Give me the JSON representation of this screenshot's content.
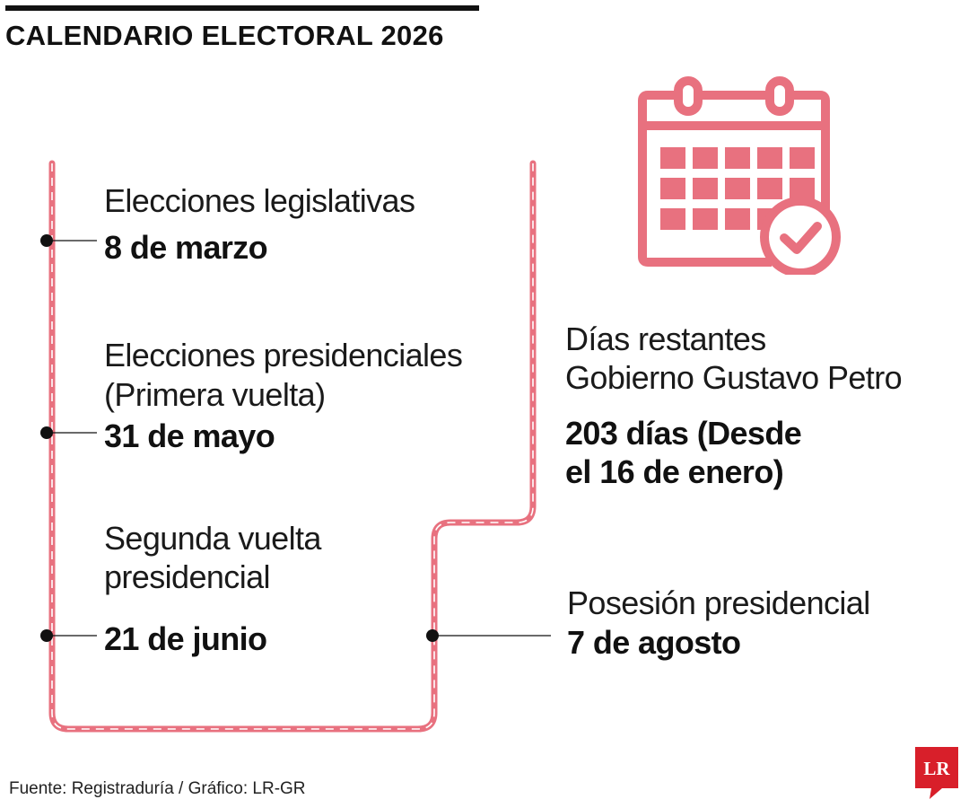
{
  "header": {
    "title": "CALENDARIO ELECTORAL 2026"
  },
  "timeline": {
    "events": [
      {
        "label_lines": [
          "Elecciones legislativas"
        ],
        "date": "8 de marzo"
      },
      {
        "label_lines": [
          "Elecciones presidenciales",
          "(Primera vuelta)"
        ],
        "date": "31 de mayo"
      },
      {
        "label_lines": [
          "Segunda vuelta",
          "presidencial"
        ],
        "date": "21 de junio"
      },
      {
        "label_lines": [
          "Posesión presidencial"
        ],
        "date": "7 de agosto"
      }
    ]
  },
  "countdown": {
    "label_lines": [
      "Días restantes",
      "Gobierno Gustavo Petro"
    ],
    "value_lines": [
      "203 días (Desde",
      "el 16 de enero)"
    ]
  },
  "footer": {
    "source": "Fuente: Registraduría  / Gráfico: LR-GR"
  },
  "logo": {
    "text": "LR"
  },
  "icons": {
    "calendar": "calendar-check-icon"
  },
  "colors": {
    "accent": "#e8717f",
    "text": "#111111",
    "logo": "#d81f2a"
  }
}
